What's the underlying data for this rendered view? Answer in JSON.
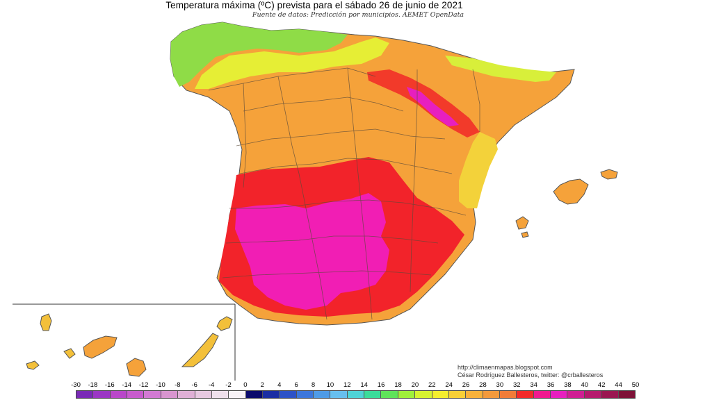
{
  "title": "Temperatura máxima (ºC) prevista para el sábado 26 de junio de 2021",
  "subtitle": "Fuente de datos: Predicción por municipios. AEMET OpenData",
  "credits": {
    "line1": "http://climaenmapas.blogspot.com",
    "line2": "César Rodríguez Ballesteros, twitter: @crballesteros"
  },
  "legend": {
    "labels": [
      "-30",
      "-18",
      "-16",
      "-14",
      "-12",
      "-10",
      "-8",
      "-6",
      "-4",
      "-2",
      "0",
      "2",
      "4",
      "6",
      "8",
      "10",
      "12",
      "14",
      "16",
      "18",
      "20",
      "22",
      "24",
      "26",
      "28",
      "30",
      "32",
      "34",
      "36",
      "38",
      "40",
      "42",
      "44",
      "50"
    ],
    "colors": [
      "#7a2ab6",
      "#9b36c4",
      "#b947c9",
      "#c85ccd",
      "#d27ad3",
      "#d895cf",
      "#dfb0d6",
      "#e7c9e1",
      "#efe0ec",
      "#f7f2f6",
      "#0a0a6b",
      "#1b2ea3",
      "#2d52c7",
      "#3c76db",
      "#4f9be6",
      "#67bfee",
      "#4fd3d6",
      "#3bdc9a",
      "#5fe35a",
      "#9ff03a",
      "#d6f230",
      "#f5ee2d",
      "#f8cf36",
      "#f7b13a",
      "#f39a3c",
      "#f07c38",
      "#f22a2a",
      "#f0198f",
      "#e71fbf",
      "#cf1f93",
      "#b51a6d",
      "#9a1751",
      "#7e1238"
    ]
  },
  "map_regions": [
    {
      "name": "north-coast",
      "temp": 20
    },
    {
      "name": "north-plateau",
      "temp": 28
    },
    {
      "name": "ebro-valley",
      "temp": 34
    },
    {
      "name": "guadiana-guadalquivir",
      "temp": 40
    },
    {
      "name": "east-coast",
      "temp": 30
    },
    {
      "name": "balearic-islands",
      "temp": 30
    },
    {
      "name": "canary-islands",
      "temp": 28
    }
  ]
}
